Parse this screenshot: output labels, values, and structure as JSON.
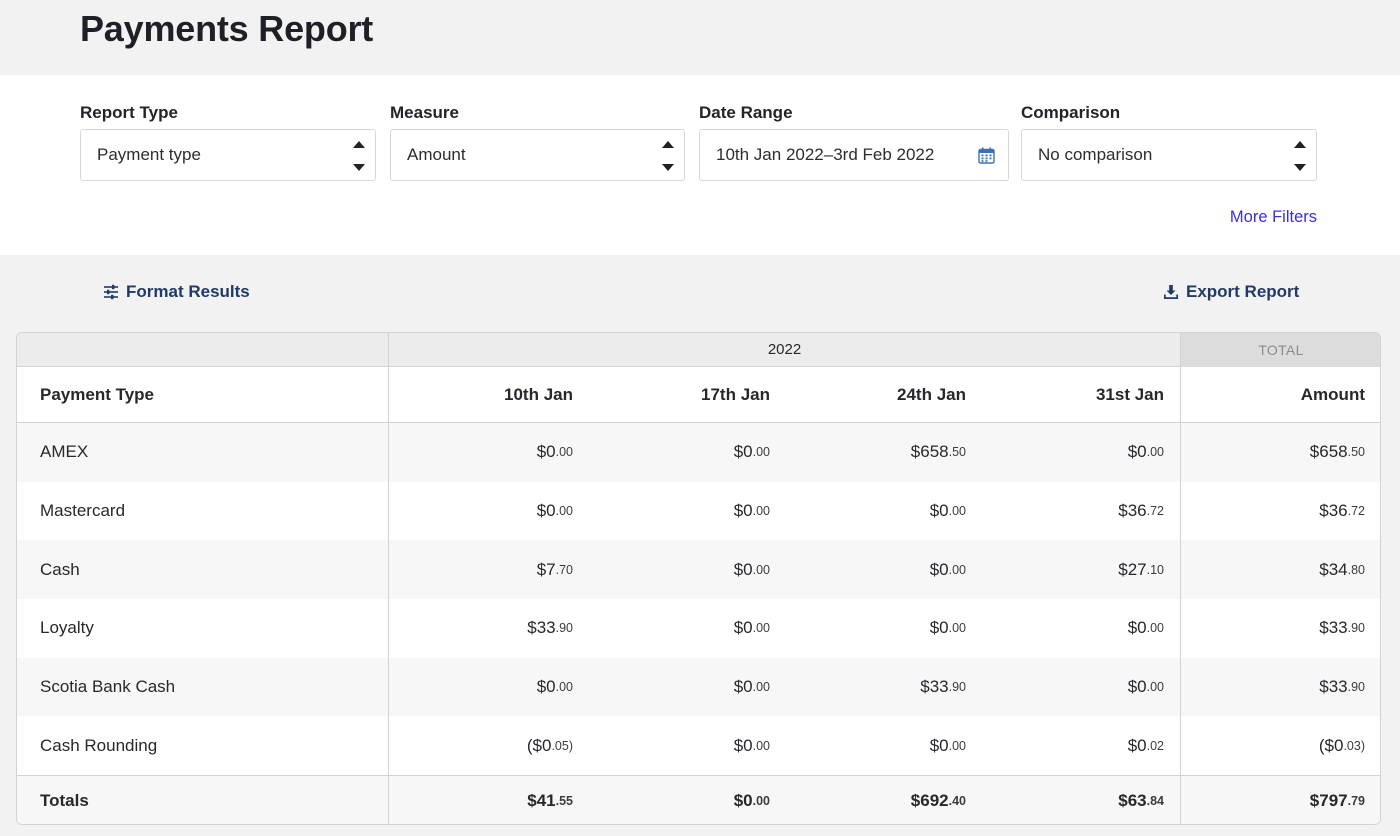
{
  "page": {
    "title": "Payments Report"
  },
  "filters": {
    "report_type": {
      "label": "Report Type",
      "value": "Payment type"
    },
    "measure": {
      "label": "Measure",
      "value": "Amount"
    },
    "date_range": {
      "label": "Date Range",
      "value": "10th Jan 2022–3rd Feb 2022",
      "icon": "calendar-icon"
    },
    "comparison": {
      "label": "Comparison",
      "value": "No comparison"
    },
    "more_filters_label": "More Filters"
  },
  "toolbar": {
    "format_results_label": "Format Results",
    "format_results_icon": "sliders-icon",
    "export_report_label": "Export Report",
    "export_report_icon": "download-icon"
  },
  "table": {
    "group_header": "2022",
    "total_header": "TOTAL",
    "columns": {
      "row_label": "Payment Type",
      "periods": [
        "10th Jan",
        "17th Jan",
        "24th Jan",
        "31st Jan"
      ],
      "total": "Amount"
    },
    "rows": [
      {
        "label": "AMEX",
        "values": [
          [
            "$0",
            ".00"
          ],
          [
            "$0",
            ".00"
          ],
          [
            "$658",
            ".50"
          ],
          [
            "$0",
            ".00"
          ]
        ],
        "total": [
          "$658",
          ".50"
        ]
      },
      {
        "label": "Mastercard",
        "values": [
          [
            "$0",
            ".00"
          ],
          [
            "$0",
            ".00"
          ],
          [
            "$0",
            ".00"
          ],
          [
            "$36",
            ".72"
          ]
        ],
        "total": [
          "$36",
          ".72"
        ]
      },
      {
        "label": "Cash",
        "values": [
          [
            "$7",
            ".70"
          ],
          [
            "$0",
            ".00"
          ],
          [
            "$0",
            ".00"
          ],
          [
            "$27",
            ".10"
          ]
        ],
        "total": [
          "$34",
          ".80"
        ]
      },
      {
        "label": "Loyalty",
        "values": [
          [
            "$33",
            ".90"
          ],
          [
            "$0",
            ".00"
          ],
          [
            "$0",
            ".00"
          ],
          [
            "$0",
            ".00"
          ]
        ],
        "total": [
          "$33",
          ".90"
        ]
      },
      {
        "label": "Scotia Bank Cash",
        "values": [
          [
            "$0",
            ".00"
          ],
          [
            "$0",
            ".00"
          ],
          [
            "$33",
            ".90"
          ],
          [
            "$0",
            ".00"
          ]
        ],
        "total": [
          "$33",
          ".90"
        ]
      },
      {
        "label": "Cash Rounding",
        "values": [
          [
            "($0",
            ".05)"
          ],
          [
            "$0",
            ".00"
          ],
          [
            "$0",
            ".00"
          ],
          [
            "$0",
            ".02"
          ]
        ],
        "total": [
          "($0",
          ".03)"
        ]
      }
    ],
    "totals": {
      "label": "Totals",
      "values": [
        [
          "$41",
          ".55"
        ],
        [
          "$0",
          ".00"
        ],
        [
          "$692",
          ".40"
        ],
        [
          "$63",
          ".84"
        ]
      ],
      "total": [
        "$797",
        ".79"
      ]
    }
  },
  "colors": {
    "link": "#3b2fd6",
    "toolbar_text": "#213a66",
    "stripe": "#f7f7f8"
  }
}
